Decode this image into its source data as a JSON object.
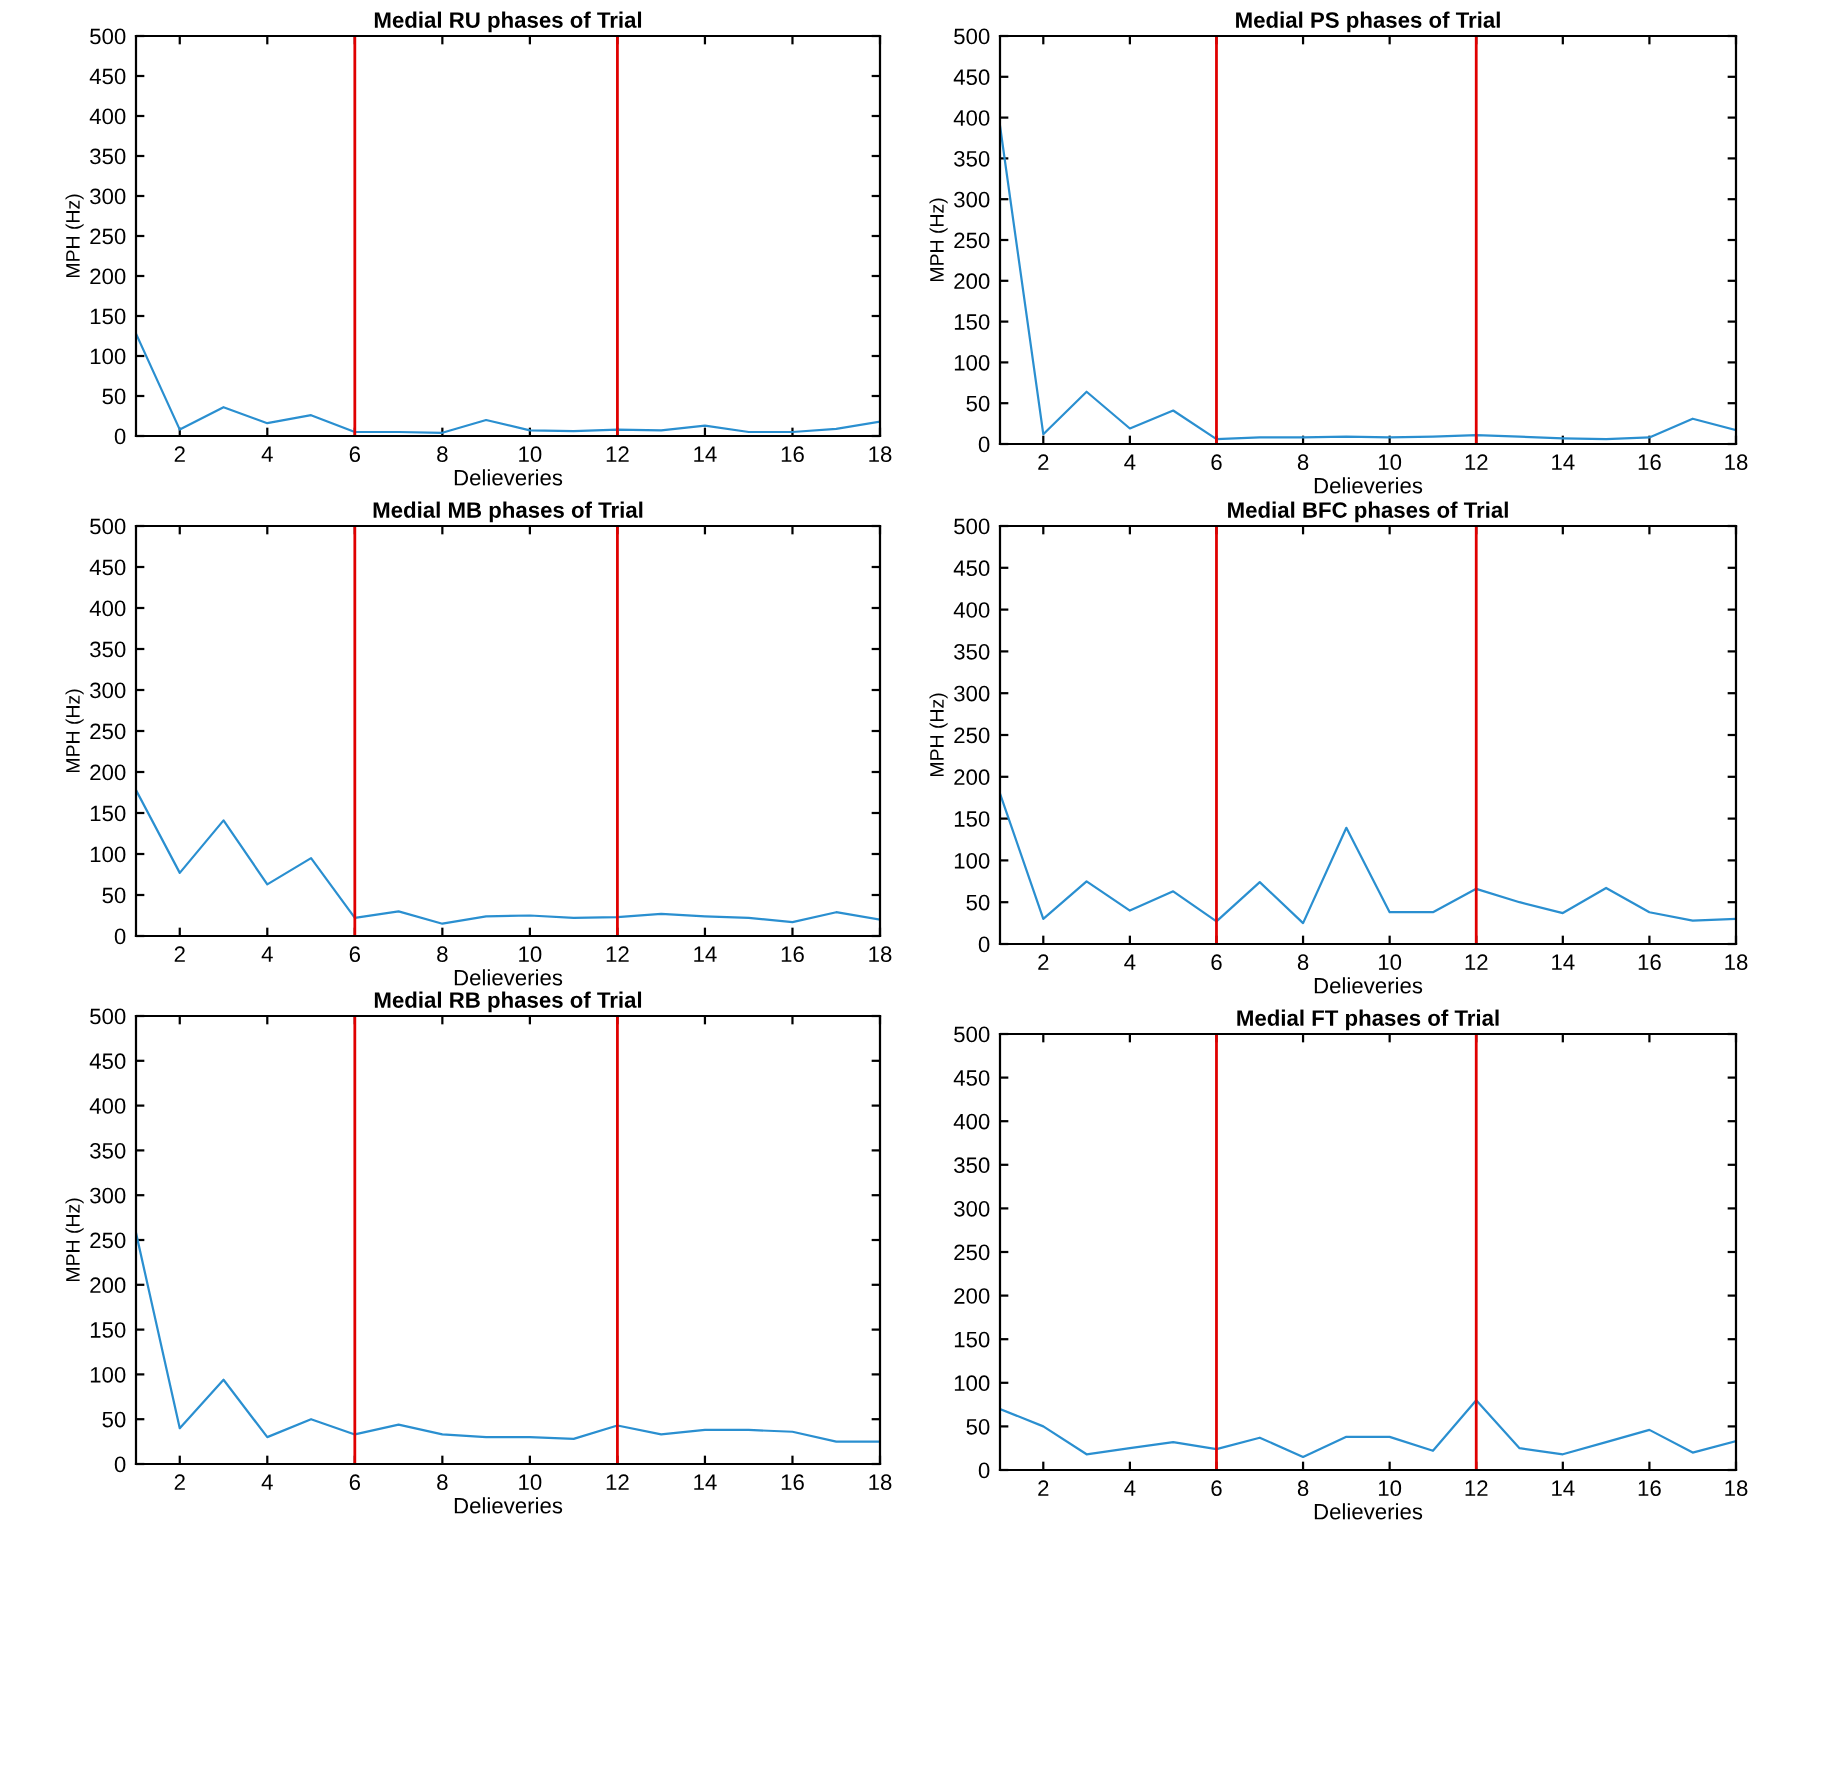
{
  "chart_data": [
    {
      "type": "line",
      "title": "Medial RU phases of Trial",
      "xlabel": "Delieveries",
      "ylabel": "MPH (Hz)",
      "x": [
        1,
        2,
        3,
        4,
        5,
        6,
        7,
        8,
        9,
        10,
        11,
        12,
        13,
        14,
        15,
        16,
        17,
        18
      ],
      "series": [
        {
          "color": "#2a8fd0",
          "values": [
            128,
            8,
            36,
            16,
            26,
            5,
            5,
            4,
            20,
            7,
            6,
            8,
            7,
            13,
            5,
            5,
            9,
            18
          ]
        }
      ],
      "xlim": [
        1,
        18
      ],
      "xticks": [
        2,
        4,
        6,
        8,
        10,
        12,
        14,
        16,
        18
      ],
      "ylim": [
        0,
        500
      ],
      "yticks": [
        0,
        50,
        100,
        150,
        200,
        250,
        300,
        350,
        400,
        450,
        500
      ],
      "grid": false,
      "marker": "none",
      "line_style": "solid",
      "ref_lines": [
        {
          "axis": "x",
          "value": 6,
          "color": "#e00000"
        },
        {
          "axis": "x",
          "value": 12,
          "color": "#e00000"
        }
      ]
    },
    {
      "type": "line",
      "title": "Medial PS phases of Trial",
      "xlabel": "Delieveries",
      "ylabel": "MPH (Hz)",
      "x": [
        1,
        2,
        3,
        4,
        5,
        6,
        7,
        8,
        9,
        10,
        11,
        12,
        13,
        14,
        15,
        16,
        17,
        18
      ],
      "series": [
        {
          "color": "#2a8fd0",
          "values": [
            390,
            12,
            64,
            19,
            41,
            6,
            8,
            8,
            9,
            8,
            9,
            11,
            9,
            7,
            6,
            8,
            31,
            17
          ]
        }
      ],
      "xlim": [
        1,
        18
      ],
      "xticks": [
        2,
        4,
        6,
        8,
        10,
        12,
        14,
        16,
        18
      ],
      "ylim": [
        0,
        500
      ],
      "yticks": [
        0,
        50,
        100,
        150,
        200,
        250,
        300,
        350,
        400,
        450,
        500
      ],
      "grid": false,
      "marker": "none",
      "line_style": "solid",
      "ref_lines": [
        {
          "axis": "x",
          "value": 6,
          "color": "#e00000"
        },
        {
          "axis": "x",
          "value": 12,
          "color": "#e00000"
        }
      ]
    },
    {
      "type": "line",
      "title": "Medial MB phases of Trial",
      "xlabel": "Delieveries",
      "ylabel": "MPH (Hz)",
      "x": [
        1,
        2,
        3,
        4,
        5,
        6,
        7,
        8,
        9,
        10,
        11,
        12,
        13,
        14,
        15,
        16,
        17,
        18
      ],
      "series": [
        {
          "color": "#2a8fd0",
          "values": [
            178,
            77,
            141,
            63,
            95,
            22,
            30,
            15,
            24,
            25,
            22,
            23,
            27,
            24,
            22,
            17,
            29,
            20
          ]
        }
      ],
      "xlim": [
        1,
        18
      ],
      "xticks": [
        2,
        4,
        6,
        8,
        10,
        12,
        14,
        16,
        18
      ],
      "ylim": [
        0,
        500
      ],
      "yticks": [
        0,
        50,
        100,
        150,
        200,
        250,
        300,
        350,
        400,
        450,
        500
      ],
      "grid": false,
      "marker": "none",
      "line_style": "solid",
      "ref_lines": [
        {
          "axis": "x",
          "value": 6,
          "color": "#e00000"
        },
        {
          "axis": "x",
          "value": 12,
          "color": "#e00000"
        }
      ]
    },
    {
      "type": "line",
      "title": "Medial BFC phases of Trial",
      "xlabel": "Delieveries",
      "ylabel": "MPH (Hz)",
      "x": [
        1,
        2,
        3,
        4,
        5,
        6,
        7,
        8,
        9,
        10,
        11,
        12,
        13,
        14,
        15,
        16,
        17,
        18
      ],
      "series": [
        {
          "color": "#2a8fd0",
          "values": [
            180,
            30,
            75,
            40,
            63,
            27,
            74,
            25,
            139,
            38,
            38,
            66,
            50,
            37,
            67,
            38,
            28,
            30
          ]
        }
      ],
      "xlim": [
        1,
        18
      ],
      "xticks": [
        2,
        4,
        6,
        8,
        10,
        12,
        14,
        16,
        18
      ],
      "ylim": [
        0,
        500
      ],
      "yticks": [
        0,
        50,
        100,
        150,
        200,
        250,
        300,
        350,
        400,
        450,
        500
      ],
      "grid": false,
      "marker": "none",
      "line_style": "solid",
      "ref_lines": [
        {
          "axis": "x",
          "value": 6,
          "color": "#e00000"
        },
        {
          "axis": "x",
          "value": 12,
          "color": "#e00000"
        }
      ]
    },
    {
      "type": "line",
      "title": "Medial RB phases of Trial",
      "xlabel": "Delieveries",
      "ylabel": "MPH (Hz)",
      "x": [
        1,
        2,
        3,
        4,
        5,
        6,
        7,
        8,
        9,
        10,
        11,
        12,
        13,
        14,
        15,
        16,
        17,
        18
      ],
      "series": [
        {
          "color": "#2a8fd0",
          "values": [
            258,
            40,
            94,
            30,
            50,
            33,
            44,
            33,
            30,
            30,
            28,
            43,
            33,
            38,
            38,
            36,
            25,
            25
          ]
        }
      ],
      "xlim": [
        1,
        18
      ],
      "xticks": [
        2,
        4,
        6,
        8,
        10,
        12,
        14,
        16,
        18
      ],
      "ylim": [
        0,
        500
      ],
      "yticks": [
        0,
        50,
        100,
        150,
        200,
        250,
        300,
        350,
        400,
        450,
        500
      ],
      "grid": false,
      "marker": "none",
      "line_style": "solid",
      "ref_lines": [
        {
          "axis": "x",
          "value": 6,
          "color": "#e00000"
        },
        {
          "axis": "x",
          "value": 12,
          "color": "#e00000"
        }
      ]
    },
    {
      "type": "line",
      "title": "Medial FT phases of Trial",
      "xlabel": "Delieveries",
      "x": [
        1,
        2,
        3,
        4,
        5,
        6,
        7,
        8,
        9,
        10,
        11,
        12,
        13,
        14,
        15,
        16,
        17,
        18
      ],
      "series": [
        {
          "color": "#2a8fd0",
          "values": [
            70,
            50,
            18,
            25,
            32,
            24,
            37,
            15,
            38,
            38,
            22,
            80,
            25,
            18,
            32,
            46,
            20,
            33
          ]
        }
      ],
      "xlim": [
        1,
        18
      ],
      "xticks": [
        2,
        4,
        6,
        8,
        10,
        12,
        14,
        16,
        18
      ],
      "ylim": [
        0,
        500
      ],
      "yticks": [
        0,
        50,
        100,
        150,
        200,
        250,
        300,
        350,
        400,
        450,
        500
      ],
      "grid": false,
      "marker": "none",
      "line_style": "solid",
      "ref_lines": [
        {
          "axis": "x",
          "value": 6,
          "color": "#e00000"
        },
        {
          "axis": "x",
          "value": 12,
          "color": "#e00000"
        }
      ]
    }
  ]
}
